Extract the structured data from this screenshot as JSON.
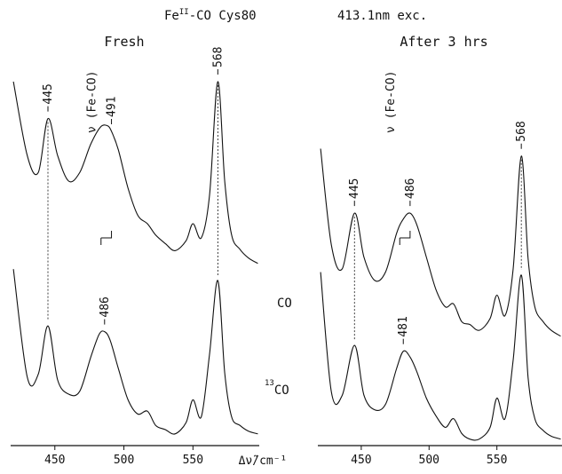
{
  "figure": {
    "title_main": "Fe",
    "title_sup": "II",
    "title_rest": "-CO Cys80",
    "excitation": "413.1nm exc.",
    "x_axis_label": "Δν̃/cm⁻¹",
    "trace_label_co": "CO",
    "trace_label_13co_sup": "13",
    "trace_label_13co_main": "CO"
  },
  "chart_data": [
    {
      "type": "line",
      "panel": "left",
      "title": "Fresh",
      "xlabel": "Δν̃/cm⁻¹",
      "xlim": [
        418,
        598
      ],
      "xticks": [
        450,
        500,
        550
      ],
      "grid": false,
      "series": [
        {
          "name": "CO",
          "x": [
            420,
            430,
            438,
            445,
            452,
            460,
            468,
            476,
            483,
            488,
            491,
            496,
            503,
            510,
            517,
            523,
            530,
            537,
            545,
            550,
            556,
            562,
            568,
            573,
            578,
            584,
            590,
            597
          ],
          "y": [
            1.3,
            0.78,
            0.66,
            1.04,
            0.78,
            0.6,
            0.66,
            0.86,
            0.98,
            0.99,
            0.95,
            0.82,
            0.55,
            0.36,
            0.3,
            0.22,
            0.16,
            0.11,
            0.18,
            0.3,
            0.2,
            0.5,
            1.3,
            0.6,
            0.22,
            0.12,
            0.06,
            0.02
          ]
        },
        {
          "name": "13CO",
          "x": [
            420,
            430,
            438,
            445,
            452,
            460,
            468,
            476,
            482,
            486,
            490,
            496,
            503,
            510,
            517,
            523,
            530,
            537,
            545,
            550,
            556,
            562,
            568,
            573,
            578,
            584,
            590,
            597
          ],
          "y": [
            1.18,
            0.42,
            0.44,
            0.78,
            0.4,
            0.3,
            0.32,
            0.56,
            0.72,
            0.74,
            0.68,
            0.48,
            0.26,
            0.16,
            0.18,
            0.08,
            0.05,
            0.02,
            0.1,
            0.26,
            0.14,
            0.58,
            1.1,
            0.45,
            0.14,
            0.08,
            0.04,
            0.02
          ]
        }
      ],
      "annotations": [
        {
          "text": "445",
          "x": 445,
          "trace": "CO"
        },
        {
          "text": "491",
          "x": 491,
          "trace": "CO"
        },
        {
          "text": "568",
          "x": 568,
          "trace": "CO"
        },
        {
          "text": "486",
          "x": 486,
          "trace": "13CO"
        },
        {
          "text": "ν (Fe-CO)",
          "x": 486
        }
      ]
    },
    {
      "type": "line",
      "panel": "right",
      "title": "After 3 hrs",
      "xlabel": "",
      "xlim": [
        418,
        598
      ],
      "xticks": [
        450,
        500,
        550
      ],
      "grid": false,
      "series": [
        {
          "name": "CO",
          "x": [
            420,
            428,
            436,
            445,
            452,
            460,
            468,
            476,
            481,
            486,
            491,
            498,
            505,
            512,
            518,
            524,
            530,
            537,
            545,
            550,
            556,
            562,
            568,
            573,
            578,
            584,
            590,
            597
          ],
          "y": [
            1.3,
            0.64,
            0.48,
            0.86,
            0.56,
            0.4,
            0.46,
            0.72,
            0.82,
            0.86,
            0.78,
            0.56,
            0.34,
            0.22,
            0.24,
            0.12,
            0.1,
            0.06,
            0.14,
            0.3,
            0.16,
            0.48,
            1.25,
            0.55,
            0.22,
            0.12,
            0.06,
            0.02
          ]
        },
        {
          "name": "13CO",
          "x": [
            420,
            428,
            436,
            445,
            452,
            460,
            468,
            476,
            481,
            486,
            491,
            498,
            505,
            512,
            518,
            524,
            530,
            537,
            545,
            550,
            556,
            562,
            568,
            573,
            578,
            584,
            590,
            597
          ],
          "y": [
            1.16,
            0.34,
            0.32,
            0.66,
            0.32,
            0.22,
            0.26,
            0.5,
            0.62,
            0.58,
            0.48,
            0.3,
            0.18,
            0.1,
            0.16,
            0.06,
            0.02,
            0.02,
            0.1,
            0.3,
            0.16,
            0.56,
            1.14,
            0.44,
            0.16,
            0.08,
            0.04,
            0.02
          ]
        }
      ],
      "annotations": [
        {
          "text": "445",
          "x": 445,
          "trace": "CO"
        },
        {
          "text": "486",
          "x": 486,
          "trace": "CO"
        },
        {
          "text": "568",
          "x": 568,
          "trace": "CO"
        },
        {
          "text": "481",
          "x": 481,
          "trace": "13CO"
        },
        {
          "text": "ν (Fe-CO)",
          "x": 481
        }
      ]
    }
  ]
}
